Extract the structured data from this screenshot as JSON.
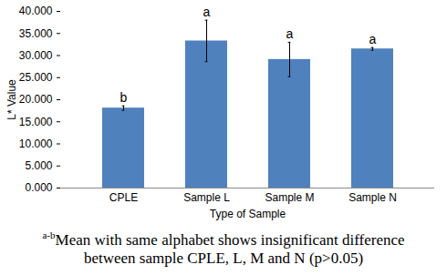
{
  "chart_data": {
    "type": "bar",
    "categories": [
      "CPLE",
      "Sample L",
      "Sample M",
      "Sample N"
    ],
    "values": [
      18.1,
      33.3,
      29.1,
      31.5
    ],
    "errors": [
      0.5,
      4.7,
      3.9,
      0.3
    ],
    "letters": [
      "b",
      "a",
      "a",
      "a"
    ],
    "color": "#4f81bd",
    "x_label": "Type of Sample",
    "y_label": "L* Value",
    "ylim": [
      0,
      40
    ],
    "yticks": [
      {
        "value": 0,
        "label": "0.000"
      },
      {
        "value": 5,
        "label": "5.000"
      },
      {
        "value": 10,
        "label": "10.000"
      },
      {
        "value": 15,
        "label": "15.000"
      },
      {
        "value": 20,
        "label": "20.000"
      },
      {
        "value": 25,
        "label": "25.000"
      },
      {
        "value": 30,
        "label": "30.000"
      },
      {
        "value": 35,
        "label": "35.000"
      },
      {
        "value": 40,
        "label": "40.000"
      }
    ],
    "grid": false,
    "caption": {
      "superscript": "a-b",
      "text": "Mean with same alphabet shows insignificant difference between sample CPLE, L, M and N (p>0.05)"
    }
  }
}
